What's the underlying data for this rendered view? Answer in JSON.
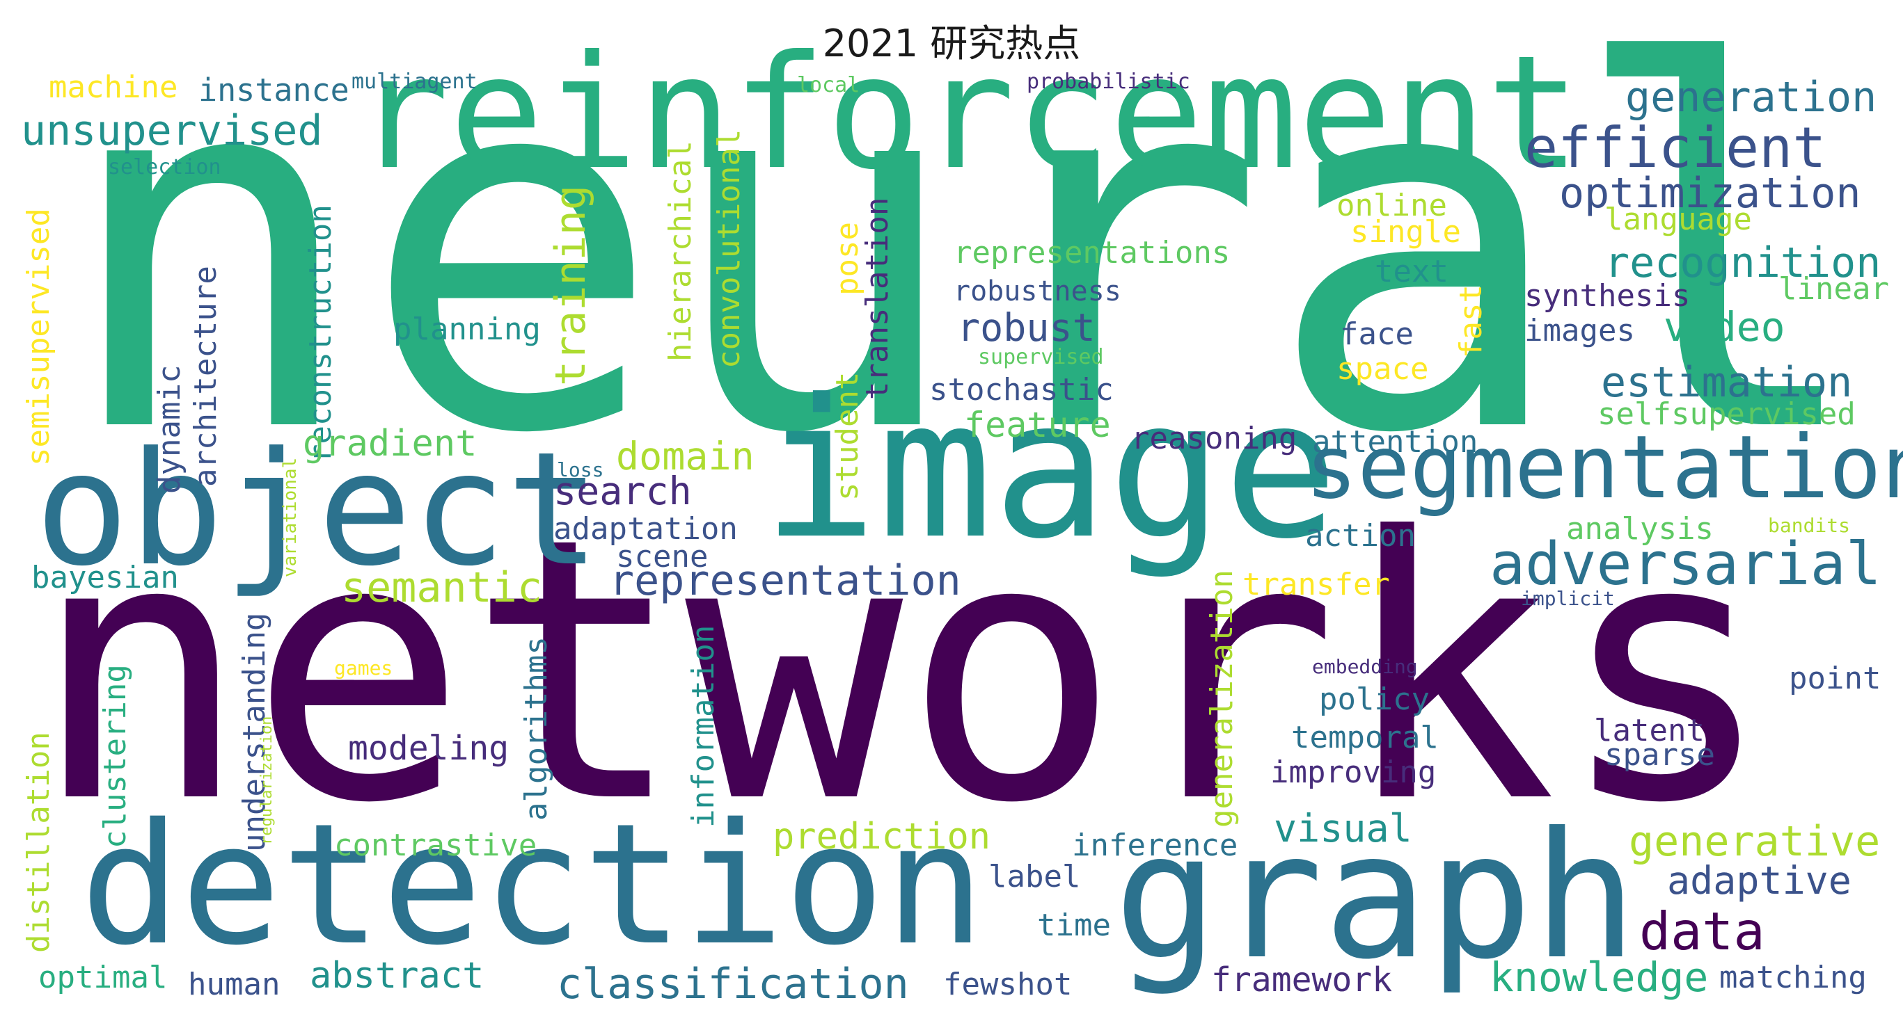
{
  "title": "2021 研究热点",
  "palette": {
    "purple": "#440154",
    "indigo": "#472d7b",
    "slate": "#3b528b",
    "blue": "#2c728e",
    "teal": "#21918c",
    "green": "#28ae80",
    "lime": "#5ec962",
    "yellowgreen": "#addc30",
    "yellow": "#fde725"
  },
  "words": [
    {
      "text": "neural",
      "color": "green"
    },
    {
      "text": "networks",
      "color": "purple"
    },
    {
      "text": "reinforcement",
      "color": "green"
    },
    {
      "text": "image",
      "color": "teal"
    },
    {
      "text": "object",
      "color": "blue"
    },
    {
      "text": "detection",
      "color": "blue"
    },
    {
      "text": "graph",
      "color": "blue"
    },
    {
      "text": "segmentation",
      "color": "blue"
    },
    {
      "text": "adversarial",
      "color": "blue"
    },
    {
      "text": "efficient",
      "color": "slate"
    },
    {
      "text": "generation",
      "color": "blue"
    },
    {
      "text": "optimization",
      "color": "slate"
    },
    {
      "text": "recognition",
      "color": "teal"
    },
    {
      "text": "unsupervised",
      "color": "teal"
    },
    {
      "text": "machine",
      "color": "yellow"
    },
    {
      "text": "instance",
      "color": "blue"
    },
    {
      "text": "multiagent",
      "color": "blue"
    },
    {
      "text": "local",
      "color": "lime"
    },
    {
      "text": "probabilistic",
      "color": "indigo"
    },
    {
      "text": "selection",
      "color": "teal"
    },
    {
      "text": "semisupervised",
      "color": "yellow"
    },
    {
      "text": "reconstruction",
      "color": "teal"
    },
    {
      "text": "architecture",
      "color": "slate"
    },
    {
      "text": "dynamic",
      "color": "slate"
    },
    {
      "text": "hierarchical",
      "color": "yellowgreen"
    },
    {
      "text": "convolutional",
      "color": "yellowgreen"
    },
    {
      "text": "training",
      "color": "yellowgreen"
    },
    {
      "text": "pose",
      "color": "yellow"
    },
    {
      "text": "translation",
      "color": "indigo"
    },
    {
      "text": "student",
      "color": "yellowgreen"
    },
    {
      "text": "representations",
      "color": "lime"
    },
    {
      "text": "robustness",
      "color": "slate"
    },
    {
      "text": "robust",
      "color": "slate"
    },
    {
      "text": "planning",
      "color": "teal"
    },
    {
      "text": "stochastic",
      "color": "slate"
    },
    {
      "text": "feature",
      "color": "lime"
    },
    {
      "text": "gradient",
      "color": "lime"
    },
    {
      "text": "domain",
      "color": "yellowgreen"
    },
    {
      "text": "search",
      "color": "indigo"
    },
    {
      "text": "adaptation",
      "color": "slate"
    },
    {
      "text": "scene",
      "color": "slate"
    },
    {
      "text": "representation",
      "color": "slate"
    },
    {
      "text": "semantic",
      "color": "yellowgreen"
    },
    {
      "text": "bayesian",
      "color": "teal"
    },
    {
      "text": "variational",
      "color": "yellowgreen"
    },
    {
      "text": "online",
      "color": "yellowgreen"
    },
    {
      "text": "single",
      "color": "yellow"
    },
    {
      "text": "text",
      "color": "teal"
    },
    {
      "text": "face",
      "color": "slate"
    },
    {
      "text": "space",
      "color": "yellow"
    },
    {
      "text": "fast",
      "color": "yellow"
    },
    {
      "text": "supervised",
      "color": "lime"
    },
    {
      "text": "reasoning",
      "color": "indigo"
    },
    {
      "text": "attention",
      "color": "blue"
    },
    {
      "text": "loss",
      "color": "blue"
    },
    {
      "text": "action",
      "color": "blue"
    },
    {
      "text": "language",
      "color": "yellowgreen"
    },
    {
      "text": "synthesis",
      "color": "indigo"
    },
    {
      "text": "linear",
      "color": "lime"
    },
    {
      "text": "images",
      "color": "slate"
    },
    {
      "text": "video",
      "color": "green"
    },
    {
      "text": "estimation",
      "color": "blue"
    },
    {
      "text": "selfsupervised",
      "color": "lime"
    },
    {
      "text": "analysis",
      "color": "lime"
    },
    {
      "text": "bandits",
      "color": "yellowgreen"
    },
    {
      "text": "implicit",
      "color": "slate"
    },
    {
      "text": "transfer",
      "color": "yellow"
    },
    {
      "text": "generalization",
      "color": "yellowgreen"
    },
    {
      "text": "embedding",
      "color": "indigo"
    },
    {
      "text": "point",
      "color": "slate"
    },
    {
      "text": "policy",
      "color": "blue"
    },
    {
      "text": "temporal",
      "color": "blue"
    },
    {
      "text": "improving",
      "color": "indigo"
    },
    {
      "text": "latent",
      "color": "indigo"
    },
    {
      "text": "sparse",
      "color": "slate"
    },
    {
      "text": "understanding",
      "color": "slate"
    },
    {
      "text": "clustering",
      "color": "green"
    },
    {
      "text": "regularization",
      "color": "yellowgreen"
    },
    {
      "text": "games",
      "color": "yellow"
    },
    {
      "text": "modeling",
      "color": "indigo"
    },
    {
      "text": "algorithms",
      "color": "blue"
    },
    {
      "text": "information",
      "color": "teal"
    },
    {
      "text": "distillation",
      "color": "yellowgreen"
    },
    {
      "text": "contrastive",
      "color": "lime"
    },
    {
      "text": "prediction",
      "color": "yellowgreen"
    },
    {
      "text": "inference",
      "color": "blue"
    },
    {
      "text": "visual",
      "color": "teal"
    },
    {
      "text": "generative",
      "color": "yellowgreen"
    },
    {
      "text": "adaptive",
      "color": "slate"
    },
    {
      "text": "label",
      "color": "slate"
    },
    {
      "text": "time",
      "color": "blue"
    },
    {
      "text": "data",
      "color": "purple"
    },
    {
      "text": "optimal",
      "color": "green"
    },
    {
      "text": "human",
      "color": "slate"
    },
    {
      "text": "abstract",
      "color": "teal"
    },
    {
      "text": "classification",
      "color": "blue"
    },
    {
      "text": "fewshot",
      "color": "slate"
    },
    {
      "text": "framework",
      "color": "indigo"
    },
    {
      "text": "knowledge",
      "color": "green"
    },
    {
      "text": "matching",
      "color": "slate"
    }
  ]
}
